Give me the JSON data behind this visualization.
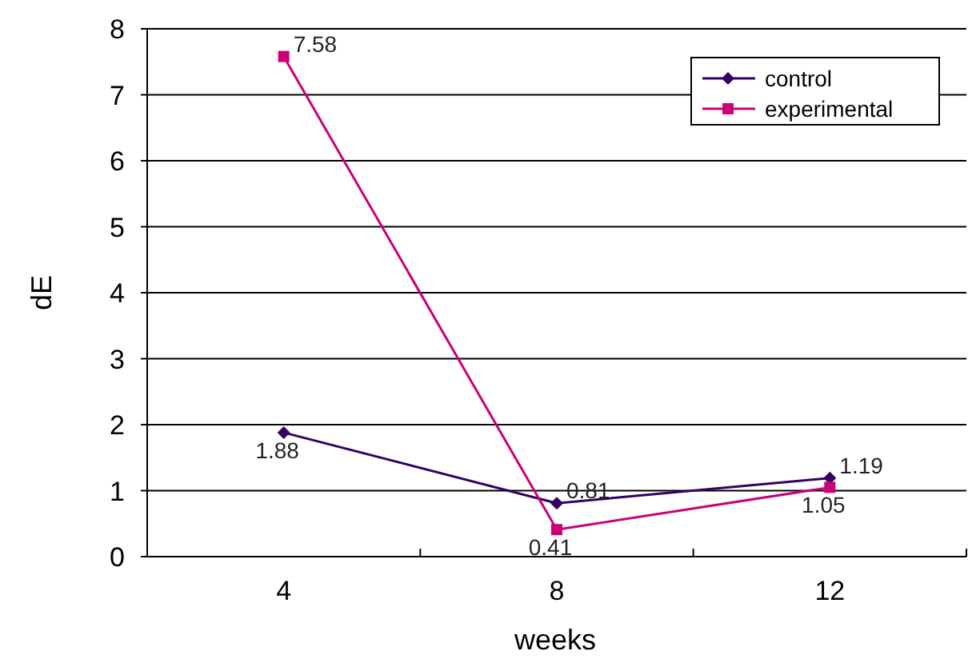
{
  "chart_data": {
    "type": "line",
    "xlabel": "weeks",
    "ylabel": "dE",
    "categories": [
      "4",
      "8",
      "12"
    ],
    "series": [
      {
        "name": "control",
        "color": "#330066",
        "marker": "diamond",
        "values": [
          1.88,
          0.81,
          1.19
        ]
      },
      {
        "name": "experimental",
        "color": "#cc0077",
        "marker": "square",
        "values": [
          7.58,
          0.41,
          1.05
        ]
      }
    ],
    "ylim": [
      0,
      8
    ],
    "yticks": [
      0,
      1,
      2,
      3,
      4,
      5,
      6,
      7,
      8
    ],
    "grid": "y",
    "legend": "top right",
    "data_labels": true
  }
}
